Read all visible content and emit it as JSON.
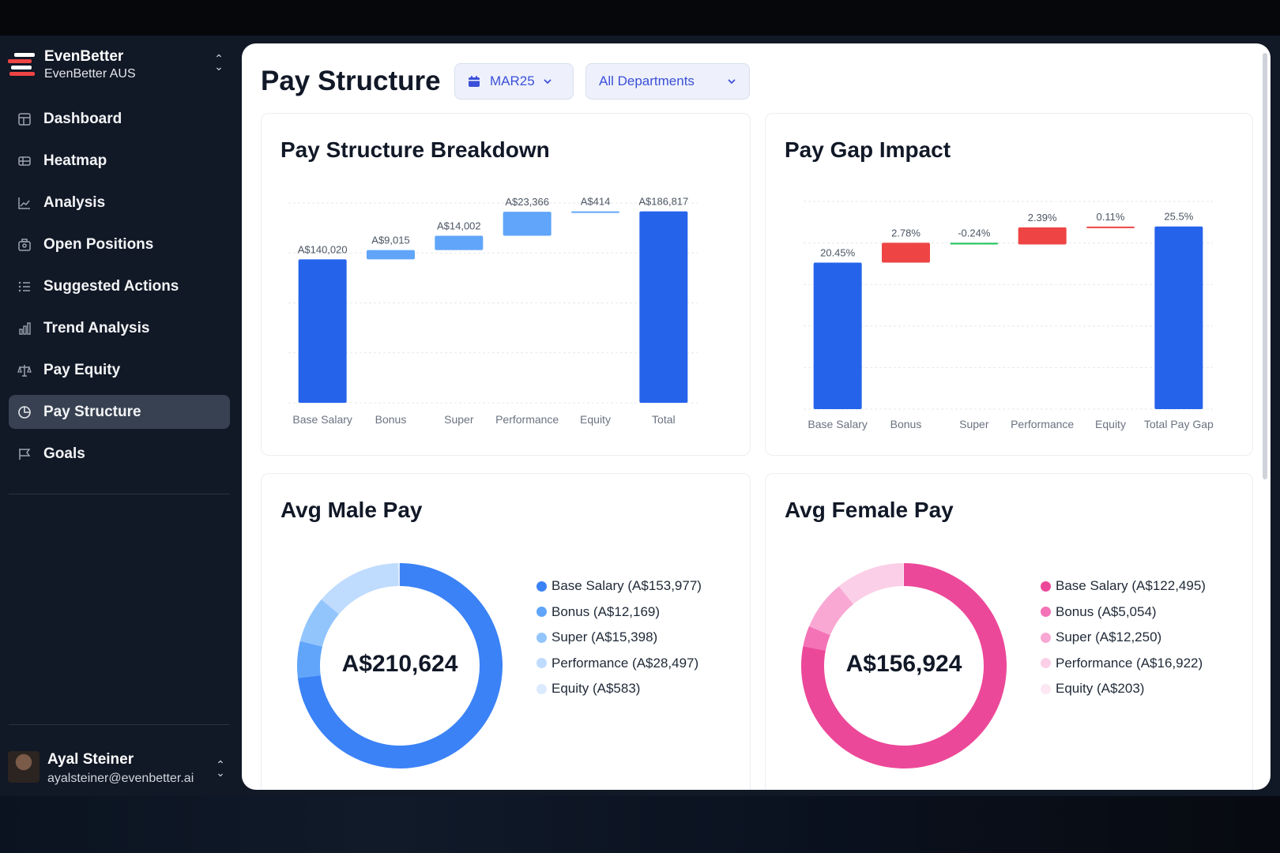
{
  "brand": {
    "name": "EvenBetter",
    "sub": "EvenBetter AUS"
  },
  "nav": [
    {
      "label": "Dashboard",
      "icon": "dashboard-icon",
      "active": false
    },
    {
      "label": "Heatmap",
      "icon": "heatmap-icon",
      "active": false
    },
    {
      "label": "Analysis",
      "icon": "analysis-icon",
      "active": false
    },
    {
      "label": "Open Positions",
      "icon": "open-positions-icon",
      "active": false
    },
    {
      "label": "Suggested Actions",
      "icon": "suggested-actions-icon",
      "active": false
    },
    {
      "label": "Trend Analysis",
      "icon": "trend-analysis-icon",
      "active": false
    },
    {
      "label": "Pay Equity",
      "icon": "scale-icon",
      "active": false
    },
    {
      "label": "Pay Structure",
      "icon": "pie-chart-icon",
      "active": true
    },
    {
      "label": "Goals",
      "icon": "flag-icon",
      "active": false
    }
  ],
  "user": {
    "name": "Ayal Steiner",
    "email": "ayalsteiner@evenbetter.ai"
  },
  "header": {
    "title": "Pay Structure",
    "month": "MAR25",
    "department": "All Departments"
  },
  "colors": {
    "blue": "#2563eb",
    "light_blue": "#60a5fa",
    "red": "#ef4444",
    "green": "#22c55e",
    "male": [
      "#3b82f6",
      "#60a5fa",
      "#93c5fd",
      "#bfdbfe",
      "#dbeafe"
    ],
    "female": [
      "#ec4899",
      "#f472b6",
      "#f9a8d4",
      "#fbcfe8",
      "#fce7f3"
    ]
  },
  "chart_data": [
    {
      "type": "bar",
      "subtype": "waterfall",
      "title": "Pay Structure Breakdown",
      "categories": [
        "Base Salary",
        "Bonus",
        "Super",
        "Performance",
        "Equity",
        "Total"
      ],
      "values": [
        140020,
        9015,
        14002,
        23366,
        414,
        186817
      ],
      "labels": [
        "A$140,020",
        "A$9,015",
        "A$14,002",
        "A$23,366",
        "A$414",
        "A$186,817"
      ],
      "ylim": [
        0,
        195000
      ]
    },
    {
      "type": "bar",
      "subtype": "waterfall",
      "title": "Pay Gap Impact",
      "categories": [
        "Base Salary",
        "Bonus",
        "Super",
        "Performance",
        "Equity",
        "Total Pay Gap"
      ],
      "values": [
        20.45,
        2.78,
        -0.24,
        2.39,
        0.11,
        25.5
      ],
      "labels": [
        "20.45%",
        "2.78%",
        "-0.24%",
        "2.39%",
        "0.11%",
        "25.5%"
      ],
      "ylim": [
        0,
        29
      ]
    },
    {
      "type": "pie",
      "title": "Avg Male Pay",
      "center_label": "A$210,624",
      "categories": [
        "Base Salary",
        "Bonus",
        "Super",
        "Performance",
        "Equity"
      ],
      "values": [
        153977,
        12169,
        15398,
        28497,
        583
      ],
      "legend": [
        "Base Salary (A$153,977)",
        "Bonus (A$12,169)",
        "Super (A$15,398)",
        "Performance (A$28,497)",
        "Equity (A$583)"
      ]
    },
    {
      "type": "pie",
      "title": "Avg Female Pay",
      "center_label": "A$156,924",
      "categories": [
        "Base Salary",
        "Bonus",
        "Super",
        "Performance",
        "Equity"
      ],
      "values": [
        122495,
        5054,
        12250,
        16922,
        203
      ],
      "legend": [
        "Base Salary (A$122,495)",
        "Bonus (A$5,054)",
        "Super (A$12,250)",
        "Performance (A$16,922)",
        "Equity (A$203)"
      ]
    }
  ]
}
